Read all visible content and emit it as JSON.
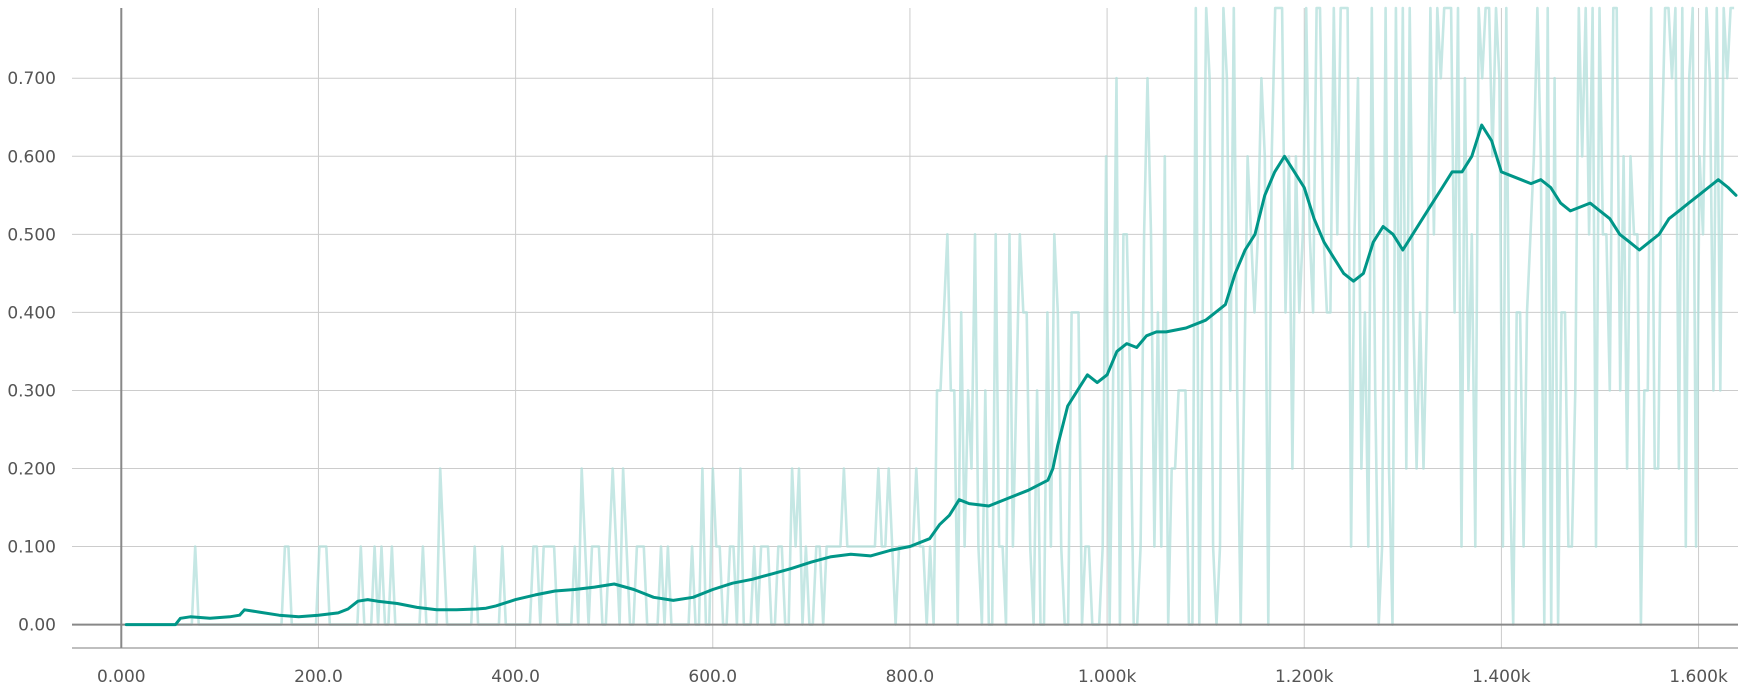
{
  "chart_data": {
    "type": "line",
    "title": "",
    "xlabel": "",
    "ylabel": "",
    "xlim": [
      -50,
      1640
    ],
    "ylim": [
      -0.03,
      0.79
    ],
    "grid": true,
    "x_ticks": [
      {
        "value": 0,
        "label": "0.000"
      },
      {
        "value": 200,
        "label": "200.0"
      },
      {
        "value": 400,
        "label": "400.0"
      },
      {
        "value": 600,
        "label": "600.0"
      },
      {
        "value": 800,
        "label": "800.0"
      },
      {
        "value": 1000,
        "label": "1.000k"
      },
      {
        "value": 1200,
        "label": "1.200k"
      },
      {
        "value": 1400,
        "label": "1.400k"
      },
      {
        "value": 1600,
        "label": "1.600k"
      }
    ],
    "y_ticks": [
      {
        "value": 0,
        "label": "0.00"
      },
      {
        "value": 0.1,
        "label": "0.100"
      },
      {
        "value": 0.2,
        "label": "0.200"
      },
      {
        "value": 0.3,
        "label": "0.300"
      },
      {
        "value": 0.4,
        "label": "0.400"
      },
      {
        "value": 0.5,
        "label": "0.500"
      },
      {
        "value": 0.6,
        "label": "0.600"
      },
      {
        "value": 0.7,
        "label": "0.700"
      }
    ],
    "colors": {
      "smoothed": "#009688",
      "raw": "#b2dfdb"
    },
    "series": [
      {
        "style": "smoothed",
        "x": [
          5,
          55,
          60,
          70,
          90,
          110,
          120,
          125,
          140,
          160,
          180,
          200,
          220,
          230,
          240,
          250,
          260,
          280,
          300,
          320,
          340,
          360,
          370,
          380,
          400,
          420,
          440,
          460,
          480,
          500,
          520,
          540,
          560,
          580,
          600,
          620,
          640,
          660,
          680,
          700,
          720,
          740,
          760,
          780,
          800,
          820,
          830,
          840,
          850,
          860,
          880,
          900,
          920,
          940,
          945,
          950,
          960,
          970,
          980,
          990,
          1000,
          1010,
          1020,
          1030,
          1040,
          1050,
          1060,
          1080,
          1100,
          1110,
          1120,
          1130,
          1140,
          1150,
          1160,
          1170,
          1180,
          1190,
          1200,
          1210,
          1220,
          1230,
          1240,
          1250,
          1260,
          1270,
          1280,
          1290,
          1300,
          1310,
          1320,
          1330,
          1340,
          1350,
          1360,
          1370,
          1380,
          1390,
          1400,
          1410,
          1420,
          1430,
          1440,
          1450,
          1460,
          1470,
          1480,
          1490,
          1500,
          1510,
          1520,
          1530,
          1540,
          1550,
          1560,
          1570,
          1580,
          1590,
          1600,
          1610,
          1620,
          1630,
          1638
        ],
        "y": [
          0,
          0,
          0.008,
          0.01,
          0.008,
          0.01,
          0.012,
          0.019,
          0.016,
          0.012,
          0.01,
          0.012,
          0.015,
          0.02,
          0.03,
          0.032,
          0.03,
          0.027,
          0.022,
          0.019,
          0.019,
          0.02,
          0.021,
          0.024,
          0.032,
          0.038,
          0.043,
          0.045,
          0.048,
          0.052,
          0.045,
          0.035,
          0.031,
          0.035,
          0.045,
          0.053,
          0.058,
          0.065,
          0.072,
          0.08,
          0.087,
          0.09,
          0.088,
          0.095,
          0.1,
          0.11,
          0.128,
          0.14,
          0.16,
          0.155,
          0.152,
          0.162,
          0.172,
          0.185,
          0.2,
          0.23,
          0.28,
          0.3,
          0.32,
          0.31,
          0.32,
          0.35,
          0.36,
          0.355,
          0.37,
          0.375,
          0.375,
          0.38,
          0.39,
          0.4,
          0.41,
          0.45,
          0.48,
          0.5,
          0.55,
          0.58,
          0.6,
          0.58,
          0.56,
          0.52,
          0.49,
          0.47,
          0.45,
          0.44,
          0.45,
          0.49,
          0.51,
          0.5,
          0.48,
          0.5,
          0.52,
          0.54,
          0.56,
          0.58,
          0.58,
          0.6,
          0.64,
          0.62,
          0.58,
          0.575,
          0.57,
          0.565,
          0.57,
          0.56,
          0.54,
          0.53,
          0.535,
          0.54,
          0.53,
          0.52,
          0.5,
          0.49,
          0.48,
          0.49,
          0.5,
          0.52,
          0.53,
          0.54,
          0.55,
          0.56,
          0.57,
          0.56,
          0.55
        ]
      }
    ]
  }
}
